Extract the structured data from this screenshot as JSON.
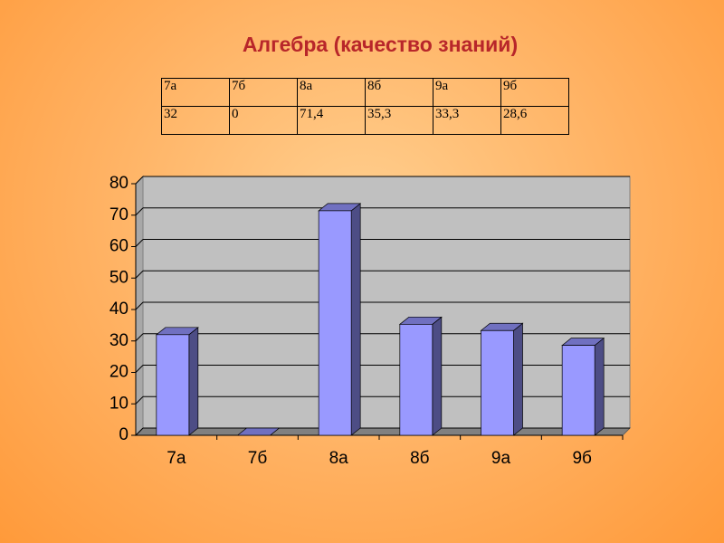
{
  "chart_data": {
    "type": "bar",
    "title": "Алгебра (качество знаний)",
    "categories": [
      "7а",
      "7б",
      "8а",
      "8б",
      "9а",
      "9б"
    ],
    "values": [
      32,
      0,
      71.4,
      35.3,
      33.3,
      28.6
    ],
    "value_labels": [
      "32",
      "0",
      "71,4",
      "35,3",
      "33,3",
      "28,6"
    ],
    "color": "#9999ff",
    "ylim": [
      0,
      80
    ],
    "yticks": [
      0,
      10,
      20,
      30,
      40,
      50,
      60,
      70,
      80
    ],
    "grid": true
  }
}
